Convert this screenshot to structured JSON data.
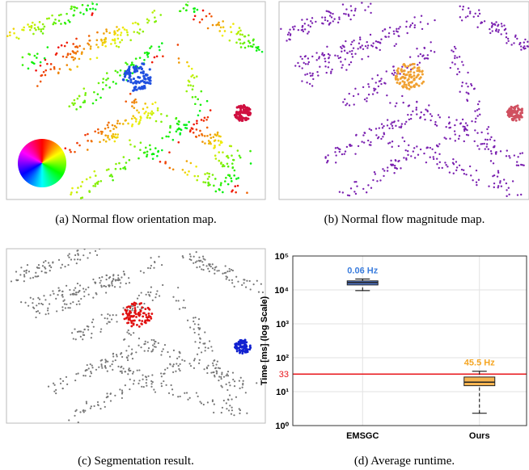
{
  "captions": [
    "(a) Normal flow orientation map.",
    "(b) Normal flow magnitude map.",
    "(c) Segmentation result.",
    "(d) Average runtime."
  ],
  "chart_data": {
    "type": "box",
    "ylabel": "Time [ms] (log Scale)",
    "log_scale": true,
    "grid": true,
    "categories": [
      "EMSGC",
      "Ours"
    ],
    "min": [
      9500,
      2.3
    ],
    "q1": [
      14000,
      15
    ],
    "median": [
      16500,
      19
    ],
    "q3": [
      18500,
      27
    ],
    "max": [
      21000,
      40
    ],
    "colors": [
      "#4f75c9",
      "#f6b552"
    ],
    "annotations": [
      "0.06 Hz",
      "45.5 Hz"
    ],
    "annotation_colors": [
      "#3b7ddd",
      "#f5a623"
    ],
    "reference_line": {
      "value": 33,
      "color": "#e8161b"
    },
    "ylim": [
      1,
      100000
    ],
    "yticks": [
      {
        "value": 1,
        "label": "10⁰"
      },
      {
        "value": 10,
        "label": "10¹"
      },
      {
        "value": 100,
        "label": "10²"
      },
      {
        "value": 1000,
        "label": "10³"
      },
      {
        "value": 10000,
        "label": "10⁴"
      },
      {
        "value": 100000,
        "label": "10⁵"
      }
    ]
  }
}
